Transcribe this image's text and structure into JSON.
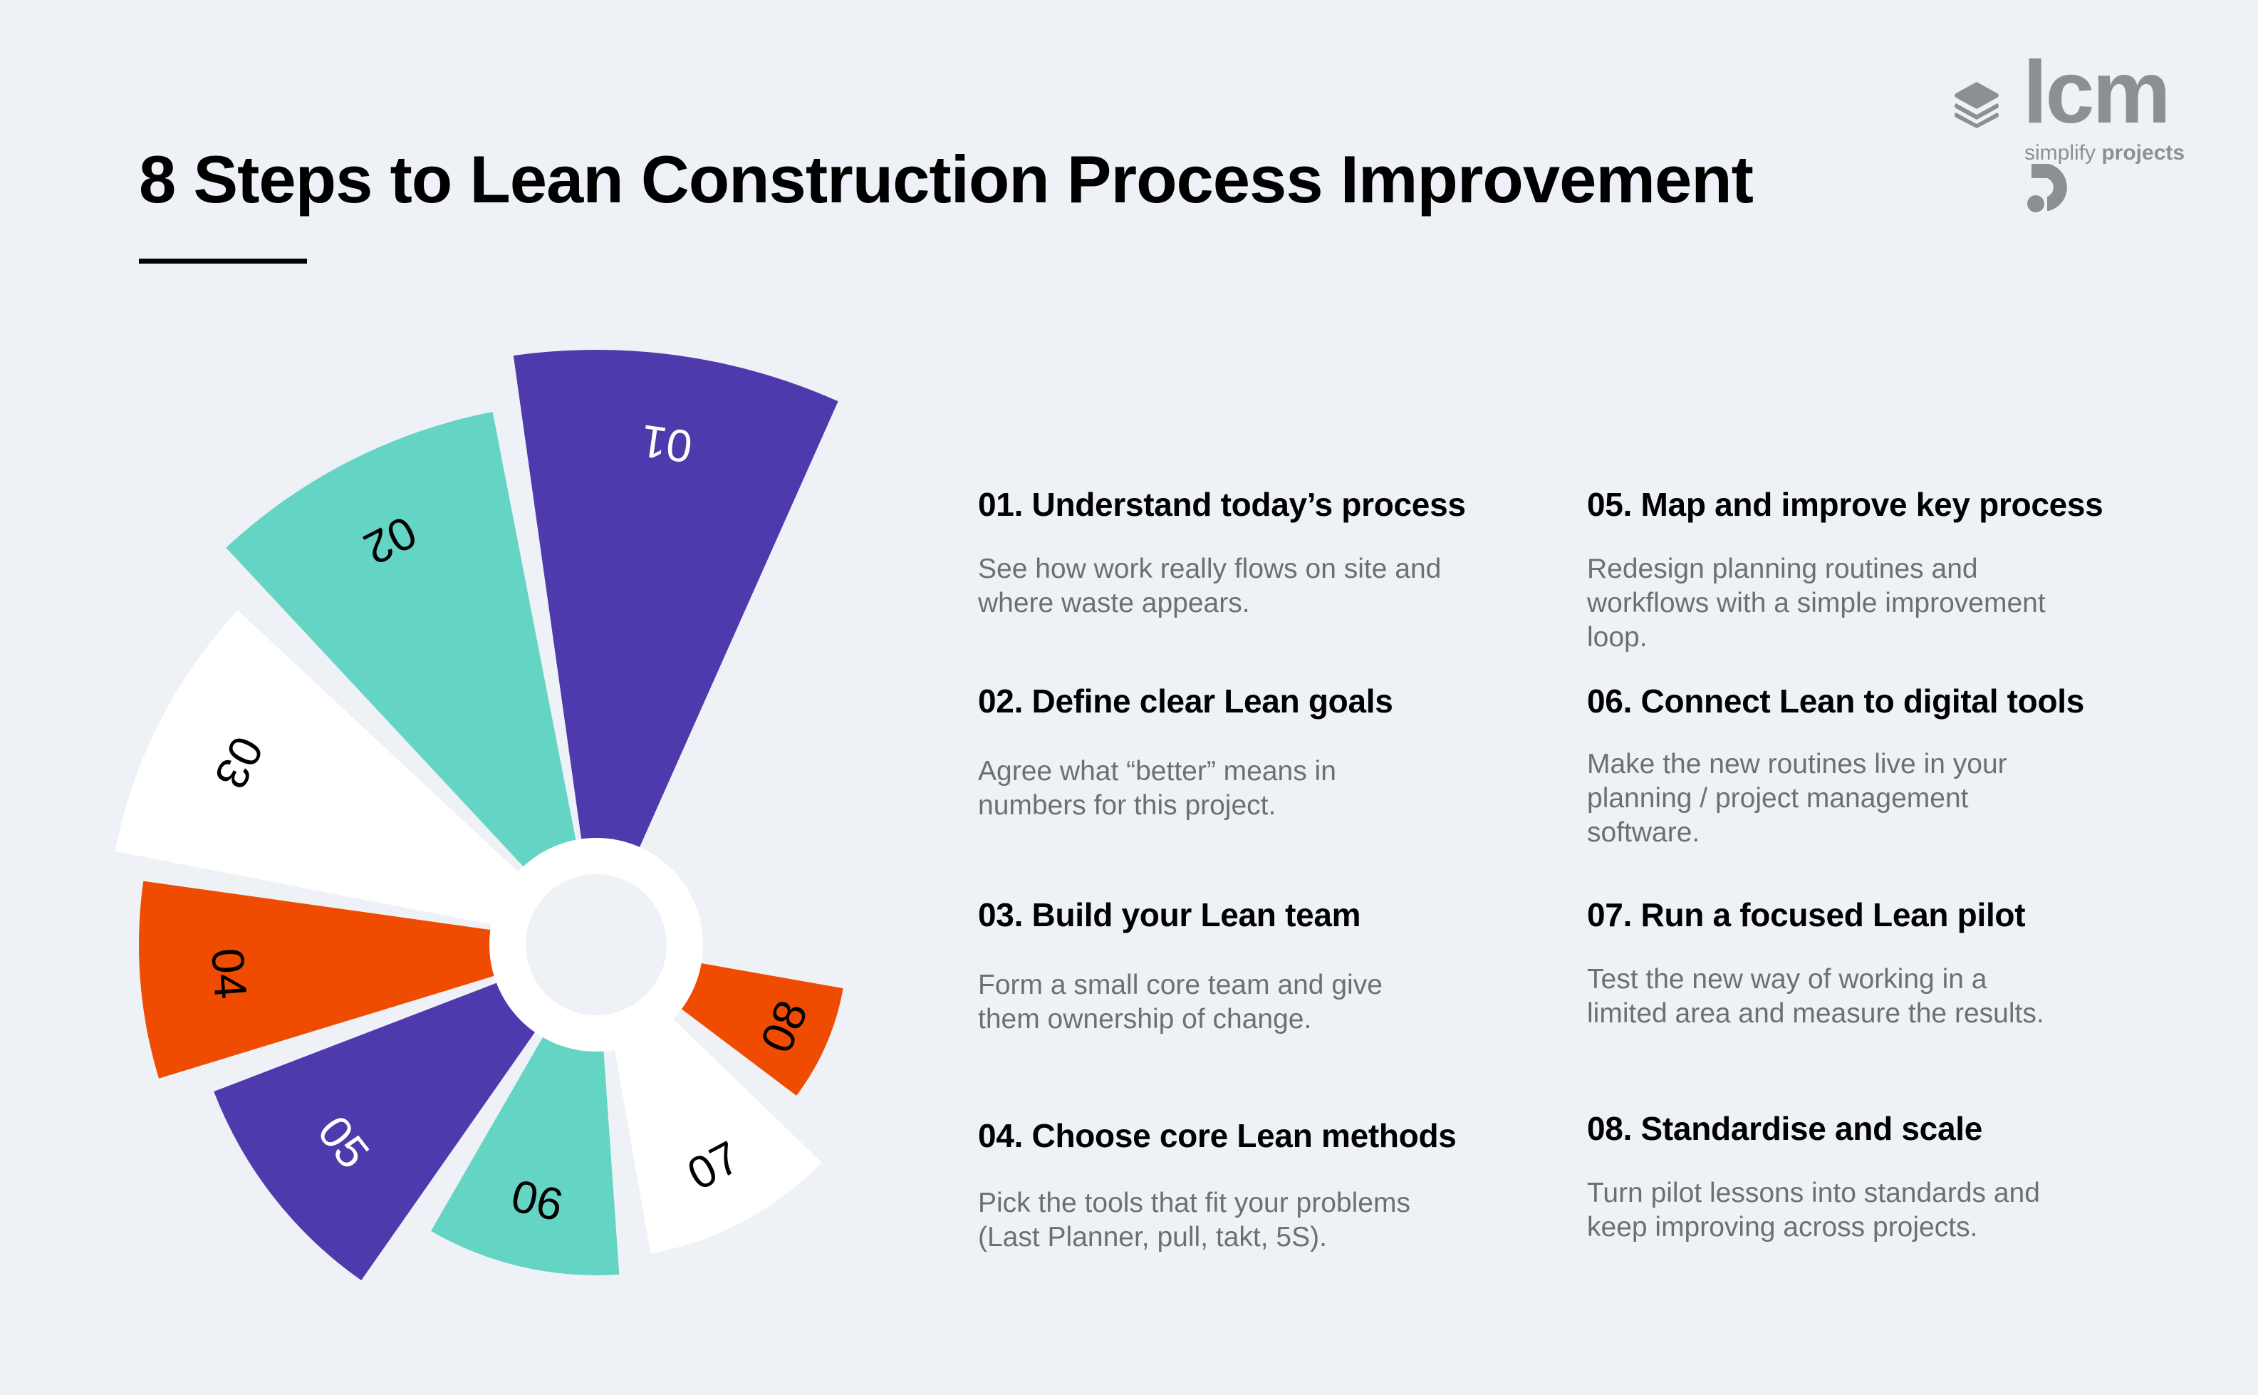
{
  "header": {
    "title": "8 Steps to Lean Construction Process Improvement"
  },
  "logo": {
    "icon": "stacked-layers-icon",
    "wordmark": "lcm",
    "wordmark_suffix": "d",
    "tagline_light": "simplify",
    "tagline_bold": "projects",
    "color": "#8c9095"
  },
  "colors": {
    "background": "#eef2f6",
    "purple": "#4f3aad",
    "teal": "#64d5c4",
    "white": "#ffffff",
    "orange": "#ef4c01",
    "text_dark": "#000000",
    "text_muted": "#6e6f72"
  },
  "chart_data": {
    "type": "radial-wedge",
    "center": [
      837,
      1326
    ],
    "hole_radius": 99,
    "ring_outer_radius": 150,
    "wedges": [
      {
        "label": "01",
        "color": "#4f3aad",
        "label_color": "#ffffff",
        "start_deg": -98,
        "end_deg": -66,
        "outer_radius": 835
      },
      {
        "label": "02",
        "color": "#64d5c4",
        "label_color": "#000000",
        "start_deg": -133,
        "end_deg": -101,
        "outer_radius": 762
      },
      {
        "label": "03",
        "color": "#ffffff",
        "label_color": "#000000",
        "start_deg": -169,
        "end_deg": -137,
        "outer_radius": 688
      },
      {
        "label": "04",
        "color": "#ef4c01",
        "label_color": "#000000",
        "start_deg": 163,
        "end_deg": 188,
        "outer_radius": 642
      },
      {
        "label": "05",
        "color": "#4f3aad",
        "label_color": "#ffffff",
        "start_deg": 125,
        "end_deg": 159,
        "outer_radius": 575
      },
      {
        "label": "06",
        "color": "#64d5c4",
        "label_color": "#000000",
        "start_deg": 86,
        "end_deg": 120,
        "outer_radius": 464
      },
      {
        "label": "07",
        "color": "#ffffff",
        "label_color": "#000000",
        "start_deg": 44,
        "end_deg": 80,
        "outer_radius": 440
      },
      {
        "label": "08",
        "color": "#ef4c01",
        "label_color": "#000000",
        "start_deg": 10,
        "end_deg": 37,
        "outer_radius": 352
      }
    ]
  },
  "steps": [
    {
      "number": "01",
      "title": "01. Understand today’s process",
      "lines": [
        "See how work really flows on site and",
        "where waste appears."
      ]
    },
    {
      "number": "02",
      "title": "02. Define clear Lean goals",
      "lines": [
        "Agree what “better” means in",
        "numbers for this project."
      ]
    },
    {
      "number": "03",
      "title": "03. Build your Lean team",
      "lines": [
        "Form a small core team and give",
        "them ownership of change."
      ]
    },
    {
      "number": "04",
      "title": "04. Choose core Lean methods",
      "lines": [
        "Pick the tools that fit your problems",
        "(Last Planner, pull, takt, 5S)."
      ]
    },
    {
      "number": "05",
      "title": "05. Map and improve key process",
      "lines": [
        "Redesign planning routines and",
        "workflows with a simple improvement",
        "loop."
      ]
    },
    {
      "number": "06",
      "title": "06. Connect Lean to digital tools",
      "lines": [
        "Make the new routines live in your",
        "planning / project management",
        "software."
      ]
    },
    {
      "number": "07",
      "title": "07. Run a focused Lean pilot",
      "lines": [
        "Test the new way of working in a",
        "limited area and measure the results."
      ]
    },
    {
      "number": "08",
      "title": "08. Standardise and scale",
      "lines": [
        "Turn pilot lessons into standards and",
        "keep improving across projects."
      ]
    }
  ]
}
